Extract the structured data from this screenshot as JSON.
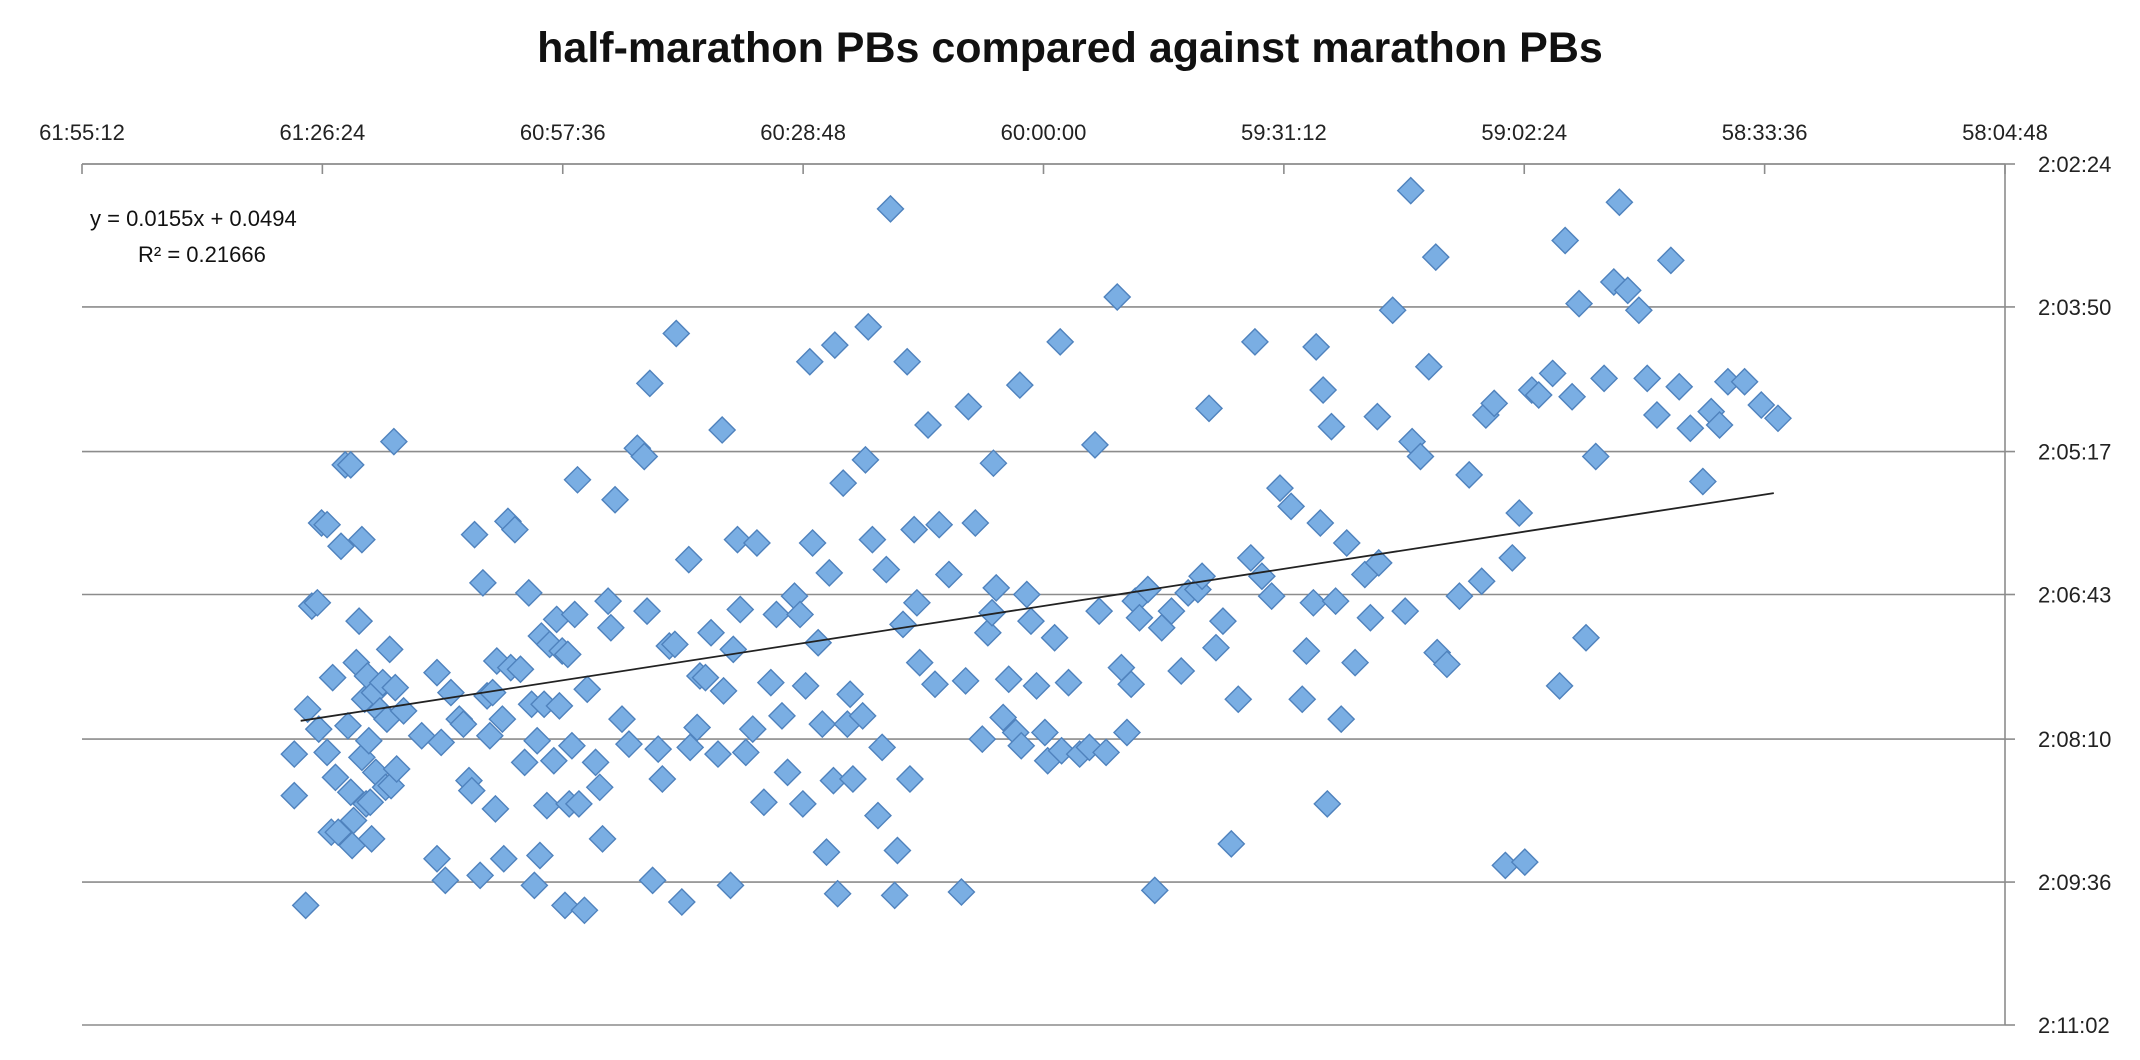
{
  "chart_data": {
    "type": "scatter",
    "title": "half-marathon PBs compared against marathon PBs",
    "xlabel": "",
    "ylabel": "",
    "x_axis": {
      "position": "top",
      "reversed": true,
      "unit": "minutes (mm:ss:ss shown as m:ss:ss)",
      "range": [
        "61:55:12",
        "58:04:48"
      ],
      "ticks": [
        "61:55:12",
        "61:26:24",
        "60:57:36",
        "60:28:48",
        "60:00:00",
        "59:31:12",
        "59:02:24",
        "58:33:36",
        "58:04:48"
      ]
    },
    "y_axis": {
      "position": "right",
      "reversed": true,
      "range": [
        "2:02:24",
        "2:11:02"
      ],
      "ticks": [
        "2:02:24",
        "2:03:50",
        "2:05:17",
        "2:06:43",
        "2:08:10",
        "2:09:36",
        "2:11:02"
      ]
    },
    "grid": "horizontal",
    "trendline": {
      "equation": "y = 0.0155x + 0.0494",
      "r_squared": "R² = 0.21666",
      "from": {
        "x": "61:29:00",
        "y": "2:07:59"
      },
      "to": {
        "x": "58:32:30",
        "y": "2:05:42"
      }
    },
    "marker_color": "#7aaee3",
    "marker_edge": "#4f82bd",
    "points": [
      [
        "61:29:46",
        "2:08:19"
      ],
      [
        "61:29:46",
        "2:08:44"
      ],
      [
        "61:28:24",
        "2:09:50"
      ],
      [
        "61:28:10",
        "2:07:52"
      ],
      [
        "61:27:40",
        "2:06:50"
      ],
      [
        "61:27:00",
        "2:06:48"
      ],
      [
        "61:26:50",
        "2:08:04"
      ],
      [
        "61:26:30",
        "2:06:00"
      ],
      [
        "61:25:50",
        "2:06:01"
      ],
      [
        "61:25:50",
        "2:08:18"
      ],
      [
        "61:25:20",
        "2:09:06"
      ],
      [
        "61:25:10",
        "2:07:33"
      ],
      [
        "61:24:50",
        "2:08:33"
      ],
      [
        "61:24:30",
        "2:09:06"
      ],
      [
        "61:24:10",
        "2:06:14"
      ],
      [
        "61:23:40",
        "2:05:25"
      ],
      [
        "61:23:20",
        "2:08:02"
      ],
      [
        "61:23:00",
        "2:08:42"
      ],
      [
        "61:22:50",
        "2:09:14"
      ],
      [
        "61:22:40",
        "2:08:59"
      ],
      [
        "61:22:20",
        "2:07:24"
      ],
      [
        "61:22:00",
        "2:06:59"
      ],
      [
        "61:21:40",
        "2:06:10"
      ],
      [
        "61:21:40",
        "2:08:21"
      ],
      [
        "61:21:20",
        "2:07:46"
      ],
      [
        "61:21:10",
        "2:08:49"
      ],
      [
        "61:21:00",
        "2:07:32"
      ],
      [
        "61:20:50",
        "2:08:11"
      ],
      [
        "61:20:40",
        "2:08:48"
      ],
      [
        "61:20:30",
        "2:09:10"
      ],
      [
        "61:20:10",
        "2:07:42"
      ],
      [
        "61:20:00",
        "2:08:30"
      ],
      [
        "61:19:30",
        "2:07:53"
      ],
      [
        "61:19:10",
        "2:07:36"
      ],
      [
        "61:18:50",
        "2:08:39"
      ],
      [
        "61:18:40",
        "2:07:58"
      ],
      [
        "61:18:20",
        "2:07:16"
      ],
      [
        "61:18:10",
        "2:08:38"
      ],
      [
        "61:17:50",
        "2:05:11"
      ],
      [
        "61:17:40",
        "2:07:39"
      ],
      [
        "61:17:30",
        "2:08:28"
      ],
      [
        "61:16:40",
        "2:07:53"
      ],
      [
        "61:14:30",
        "2:08:08"
      ],
      [
        "61:12:40",
        "2:09:22"
      ],
      [
        "61:12:40",
        "2:07:30"
      ],
      [
        "61:12:10",
        "2:08:12"
      ],
      [
        "61:11:40",
        "2:09:35"
      ],
      [
        "61:11:00",
        "2:07:42"
      ],
      [
        "61:10:00",
        "2:07:58"
      ],
      [
        "61:09:30",
        "2:08:01"
      ],
      [
        "61:08:50",
        "2:08:35"
      ],
      [
        "61:08:30",
        "2:08:41"
      ],
      [
        "61:08:10",
        "2:06:07"
      ],
      [
        "61:07:30",
        "2:09:32"
      ],
      [
        "61:07:10",
        "2:06:36"
      ],
      [
        "61:06:40",
        "2:07:44"
      ],
      [
        "61:06:20",
        "2:08:08"
      ],
      [
        "61:06:00",
        "2:07:42"
      ],
      [
        "61:05:40",
        "2:08:52"
      ],
      [
        "61:05:30",
        "2:07:23"
      ],
      [
        "61:04:50",
        "2:07:58"
      ],
      [
        "61:04:40",
        "2:09:22"
      ],
      [
        "61:04:10",
        "2:05:59"
      ],
      [
        "61:03:50",
        "2:07:27"
      ],
      [
        "61:03:20",
        "2:06:04"
      ],
      [
        "61:02:40",
        "2:07:28"
      ],
      [
        "61:02:10",
        "2:08:24"
      ],
      [
        "61:01:40",
        "2:06:42"
      ],
      [
        "61:01:20",
        "2:07:49"
      ],
      [
        "61:01:00",
        "2:09:38"
      ],
      [
        "61:00:40",
        "2:08:11"
      ],
      [
        "61:00:20",
        "2:09:20"
      ],
      [
        "61:00:10",
        "2:07:08"
      ],
      [
        "60:59:50",
        "2:07:49"
      ],
      [
        "60:59:30",
        "2:08:50"
      ],
      [
        "60:59:10",
        "2:07:13"
      ],
      [
        "60:58:40",
        "2:08:23"
      ],
      [
        "60:58:20",
        "2:06:58"
      ],
      [
        "60:58:00",
        "2:07:50"
      ],
      [
        "60:57:40",
        "2:07:17"
      ],
      [
        "60:57:20",
        "2:09:50"
      ],
      [
        "60:57:00",
        "2:07:19"
      ],
      [
        "60:56:50",
        "2:08:49"
      ],
      [
        "60:56:30",
        "2:08:14"
      ],
      [
        "60:56:10",
        "2:06:55"
      ],
      [
        "60:55:50",
        "2:05:34"
      ],
      [
        "60:55:40",
        "2:08:49"
      ],
      [
        "60:55:00",
        "2:09:53"
      ],
      [
        "60:54:40",
        "2:07:40"
      ],
      [
        "60:53:40",
        "2:08:24"
      ],
      [
        "60:53:10",
        "2:08:39"
      ],
      [
        "60:52:50",
        "2:09:10"
      ],
      [
        "60:52:10",
        "2:06:47"
      ],
      [
        "60:51:50",
        "2:07:03"
      ],
      [
        "60:51:20",
        "2:05:46"
      ],
      [
        "60:50:30",
        "2:07:58"
      ],
      [
        "60:49:40",
        "2:08:13"
      ],
      [
        "60:48:40",
        "2:05:15"
      ],
      [
        "60:47:50",
        "2:05:20"
      ],
      [
        "60:47:30",
        "2:06:53"
      ],
      [
        "60:46:50",
        "2:09:35"
      ],
      [
        "60:46:10",
        "2:08:16"
      ],
      [
        "60:45:40",
        "2:08:34"
      ],
      [
        "60:44:50",
        "2:07:14"
      ],
      [
        "60:44:10",
        "2:07:13"
      ],
      [
        "60:43:20",
        "2:09:48"
      ],
      [
        "60:42:30",
        "2:06:22"
      ],
      [
        "60:42:20",
        "2:08:15"
      ],
      [
        "60:41:30",
        "2:08:03"
      ],
      [
        "60:41:10",
        "2:07:32"
      ],
      [
        "60:40:30",
        "2:07:33"
      ],
      [
        "60:39:50",
        "2:07:06"
      ],
      [
        "60:39:00",
        "2:08:19"
      ],
      [
        "60:38:20",
        "2:07:41"
      ],
      [
        "60:37:30",
        "2:09:38"
      ],
      [
        "60:37:10",
        "2:07:16"
      ],
      [
        "60:36:40",
        "2:06:10"
      ],
      [
        "60:36:20",
        "2:06:52"
      ],
      [
        "60:35:40",
        "2:08:18"
      ],
      [
        "60:34:50",
        "2:08:04"
      ],
      [
        "60:34:20",
        "2:06:12"
      ],
      [
        "60:33:30",
        "2:08:48"
      ],
      [
        "60:32:40",
        "2:07:36"
      ],
      [
        "60:32:00",
        "2:06:55"
      ],
      [
        "60:31:20",
        "2:07:56"
      ],
      [
        "60:30:40",
        "2:08:30"
      ],
      [
        "60:29:50",
        "2:06:44"
      ],
      [
        "60:29:10",
        "2:06:55"
      ],
      [
        "60:28:50",
        "2:08:49"
      ],
      [
        "60:28:30",
        "2:07:38"
      ],
      [
        "60:27:40",
        "2:06:12"
      ],
      [
        "60:27:00",
        "2:07:12"
      ],
      [
        "60:26:30",
        "2:08:01"
      ],
      [
        "60:26:00",
        "2:09:18"
      ],
      [
        "60:25:40",
        "2:06:30"
      ],
      [
        "60:25:10",
        "2:08:35"
      ],
      [
        "60:24:40",
        "2:09:43"
      ],
      [
        "60:24:00",
        "2:05:36"
      ],
      [
        "60:23:30",
        "2:08:01"
      ],
      [
        "60:23:10",
        "2:07:43"
      ],
      [
        "60:22:50",
        "2:08:34"
      ],
      [
        "60:21:40",
        "2:07:56"
      ],
      [
        "60:21:20",
        "2:05:22"
      ],
      [
        "60:20:30",
        "2:06:10"
      ],
      [
        "60:19:50",
        "2:08:56"
      ],
      [
        "60:19:20",
        "2:08:15"
      ],
      [
        "60:18:50",
        "2:06:28"
      ],
      [
        "60:17:50",
        "2:09:44"
      ],
      [
        "60:17:30",
        "2:09:17"
      ],
      [
        "60:16:50",
        "2:07:01"
      ],
      [
        "60:16:00",
        "2:08:34"
      ],
      [
        "60:15:30",
        "2:06:04"
      ],
      [
        "60:15:10",
        "2:06:48"
      ],
      [
        "60:14:50",
        "2:07:24"
      ],
      [
        "60:13:50",
        "2:05:01"
      ],
      [
        "60:13:00",
        "2:07:37"
      ],
      [
        "60:12:30",
        "2:06:01"
      ],
      [
        "60:11:20",
        "2:06:31"
      ],
      [
        "60:09:50",
        "2:09:42"
      ],
      [
        "60:09:20",
        "2:07:35"
      ],
      [
        "60:08:10",
        "2:06:00"
      ],
      [
        "60:07:20",
        "2:08:10"
      ],
      [
        "60:06:40",
        "2:07:06"
      ],
      [
        "60:06:10",
        "2:06:54"
      ],
      [
        "60:05:40",
        "2:06:39"
      ],
      [
        "60:04:50",
        "2:07:57"
      ],
      [
        "60:04:10",
        "2:07:34"
      ],
      [
        "60:03:20",
        "2:08:06"
      ],
      [
        "60:02:40",
        "2:08:14"
      ],
      [
        "60:02:00",
        "2:06:43"
      ],
      [
        "60:01:30",
        "2:06:59"
      ],
      [
        "60:00:50",
        "2:07:38"
      ],
      [
        "59:59:50",
        "2:08:06"
      ],
      [
        "59:59:30",
        "2:08:23"
      ],
      [
        "59:58:40",
        "2:07:09"
      ],
      [
        "59:57:50",
        "2:08:17"
      ],
      [
        "59:57:00",
        "2:07:36"
      ],
      [
        "59:55:40",
        "2:08:19"
      ],
      [
        "59:54:30",
        "2:08:15"
      ],
      [
        "59:53:50",
        "2:05:13"
      ],
      [
        "59:53:20",
        "2:06:53"
      ],
      [
        "59:52:30",
        "2:08:18"
      ],
      [
        "59:51:10",
        "2:03:44"
      ],
      [
        "59:50:40",
        "2:07:27"
      ],
      [
        "59:50:00",
        "2:08:06"
      ],
      [
        "59:49:30",
        "2:07:37"
      ],
      [
        "59:49:00",
        "2:06:47"
      ],
      [
        "59:48:30",
        "2:06:57"
      ],
      [
        "59:47:30",
        "2:06:40"
      ],
      [
        "59:46:40",
        "2:09:41"
      ],
      [
        "59:45:50",
        "2:07:03"
      ],
      [
        "59:44:40",
        "2:06:53"
      ],
      [
        "59:43:30",
        "2:07:29"
      ],
      [
        "59:42:40",
        "2:06:42"
      ],
      [
        "59:41:30",
        "2:06:40"
      ],
      [
        "59:40:10",
        "2:04:51"
      ],
      [
        "59:39:20",
        "2:07:15"
      ],
      [
        "59:38:30",
        "2:06:59"
      ],
      [
        "59:37:30",
        "2:09:13"
      ],
      [
        "59:36:40",
        "2:07:46"
      ],
      [
        "59:35:10",
        "2:06:21"
      ],
      [
        "59:34:40",
        "2:04:11"
      ],
      [
        "59:33:50",
        "2:06:32"
      ],
      [
        "59:32:40",
        "2:06:44"
      ],
      [
        "59:31:40",
        "2:05:39"
      ],
      [
        "59:30:20",
        "2:05:50"
      ],
      [
        "59:29:00",
        "2:07:46"
      ],
      [
        "59:28:30",
        "2:07:17"
      ],
      [
        "59:27:40",
        "2:06:48"
      ],
      [
        "59:26:50",
        "2:06:00"
      ],
      [
        "59:26:00",
        "2:08:49"
      ],
      [
        "59:25:00",
        "2:06:47"
      ],
      [
        "59:24:20",
        "2:07:58"
      ],
      [
        "59:23:40",
        "2:06:12"
      ],
      [
        "59:22:40",
        "2:07:24"
      ],
      [
        "59:21:30",
        "2:06:31"
      ],
      [
        "59:20:50",
        "2:06:57"
      ],
      [
        "59:19:50",
        "2:06:24"
      ],
      [
        "59:18:10",
        "2:03:52"
      ],
      [
        "59:16:40",
        "2:06:53"
      ],
      [
        "59:15:50",
        "2:05:11"
      ],
      [
        "59:14:50",
        "2:05:20"
      ],
      [
        "59:13:50",
        "2:04:26"
      ],
      [
        "59:12:50",
        "2:07:18"
      ],
      [
        "59:11:40",
        "2:07:25"
      ],
      [
        "59:10:10",
        "2:06:44"
      ],
      [
        "59:09:00",
        "2:05:31"
      ],
      [
        "59:07:30",
        "2:06:35"
      ],
      [
        "59:07:00",
        "2:04:55"
      ],
      [
        "59:06:00",
        "2:04:48"
      ],
      [
        "59:04:40",
        "2:09:26"
      ],
      [
        "59:03:50",
        "2:06:21"
      ],
      [
        "59:03:00",
        "2:05:54"
      ],
      [
        "59:02:20",
        "2:09:24"
      ],
      [
        "59:01:30",
        "2:04:40"
      ],
      [
        "59:00:40",
        "2:04:43"
      ],
      [
        "58:59:00",
        "2:04:30"
      ],
      [
        "58:58:10",
        "2:07:38"
      ],
      [
        "58:57:30",
        "2:03:10"
      ],
      [
        "58:56:40",
        "2:04:44"
      ],
      [
        "58:55:50",
        "2:03:48"
      ],
      [
        "58:55:00",
        "2:07:09"
      ],
      [
        "58:53:50",
        "2:05:20"
      ],
      [
        "58:52:50",
        "2:04:33"
      ],
      [
        "58:51:40",
        "2:03:35"
      ],
      [
        "58:51:00",
        "2:02:47"
      ],
      [
        "58:50:00",
        "2:03:40"
      ],
      [
        "58:48:40",
        "2:03:52"
      ],
      [
        "58:47:40",
        "2:04:33"
      ],
      [
        "58:46:30",
        "2:04:55"
      ],
      [
        "58:44:50",
        "2:03:22"
      ],
      [
        "58:43:50",
        "2:04:38"
      ],
      [
        "58:42:30",
        "2:05:03"
      ],
      [
        "58:40:00",
        "2:04:53"
      ],
      [
        "58:38:00",
        "2:04:35"
      ],
      [
        "58:36:00",
        "2:04:35"
      ],
      [
        "58:34:00",
        "2:04:49"
      ],
      [
        "58:32:00",
        "2:04:57"
      ],
      [
        "59:26:30",
        "2:04:40"
      ],
      [
        "59:25:30",
        "2:05:02"
      ],
      [
        "59:27:20",
        "2:04:14"
      ],
      [
        "60:06:00",
        "2:05:24"
      ],
      [
        "60:02:50",
        "2:04:37"
      ],
      [
        "59:58:00",
        "2:04:11"
      ],
      [
        "60:16:20",
        "2:04:23"
      ],
      [
        "60:18:20",
        "2:02:51"
      ],
      [
        "60:21:00",
        "2:04:02"
      ],
      [
        "60:25:00",
        "2:04:13"
      ],
      [
        "60:28:00",
        "2:04:23"
      ],
      [
        "60:38:30",
        "2:05:04"
      ],
      [
        "60:44:00",
        "2:04:06"
      ],
      [
        "60:47:10",
        "2:04:36"
      ],
      [
        "59:16:00",
        "2:02:40"
      ],
      [
        "59:13:00",
        "2:03:20"
      ],
      [
        "58:41:00",
        "2:05:35"
      ],
      [
        "58:39:00",
        "2:05:01"
      ],
      [
        "61:23:00",
        "2:05:25"
      ],
      [
        "60:09:00",
        "2:04:50"
      ],
      [
        "59:41:00",
        "2:06:32"
      ],
      [
        "59:20:00",
        "2:04:56"
      ]
    ]
  }
}
